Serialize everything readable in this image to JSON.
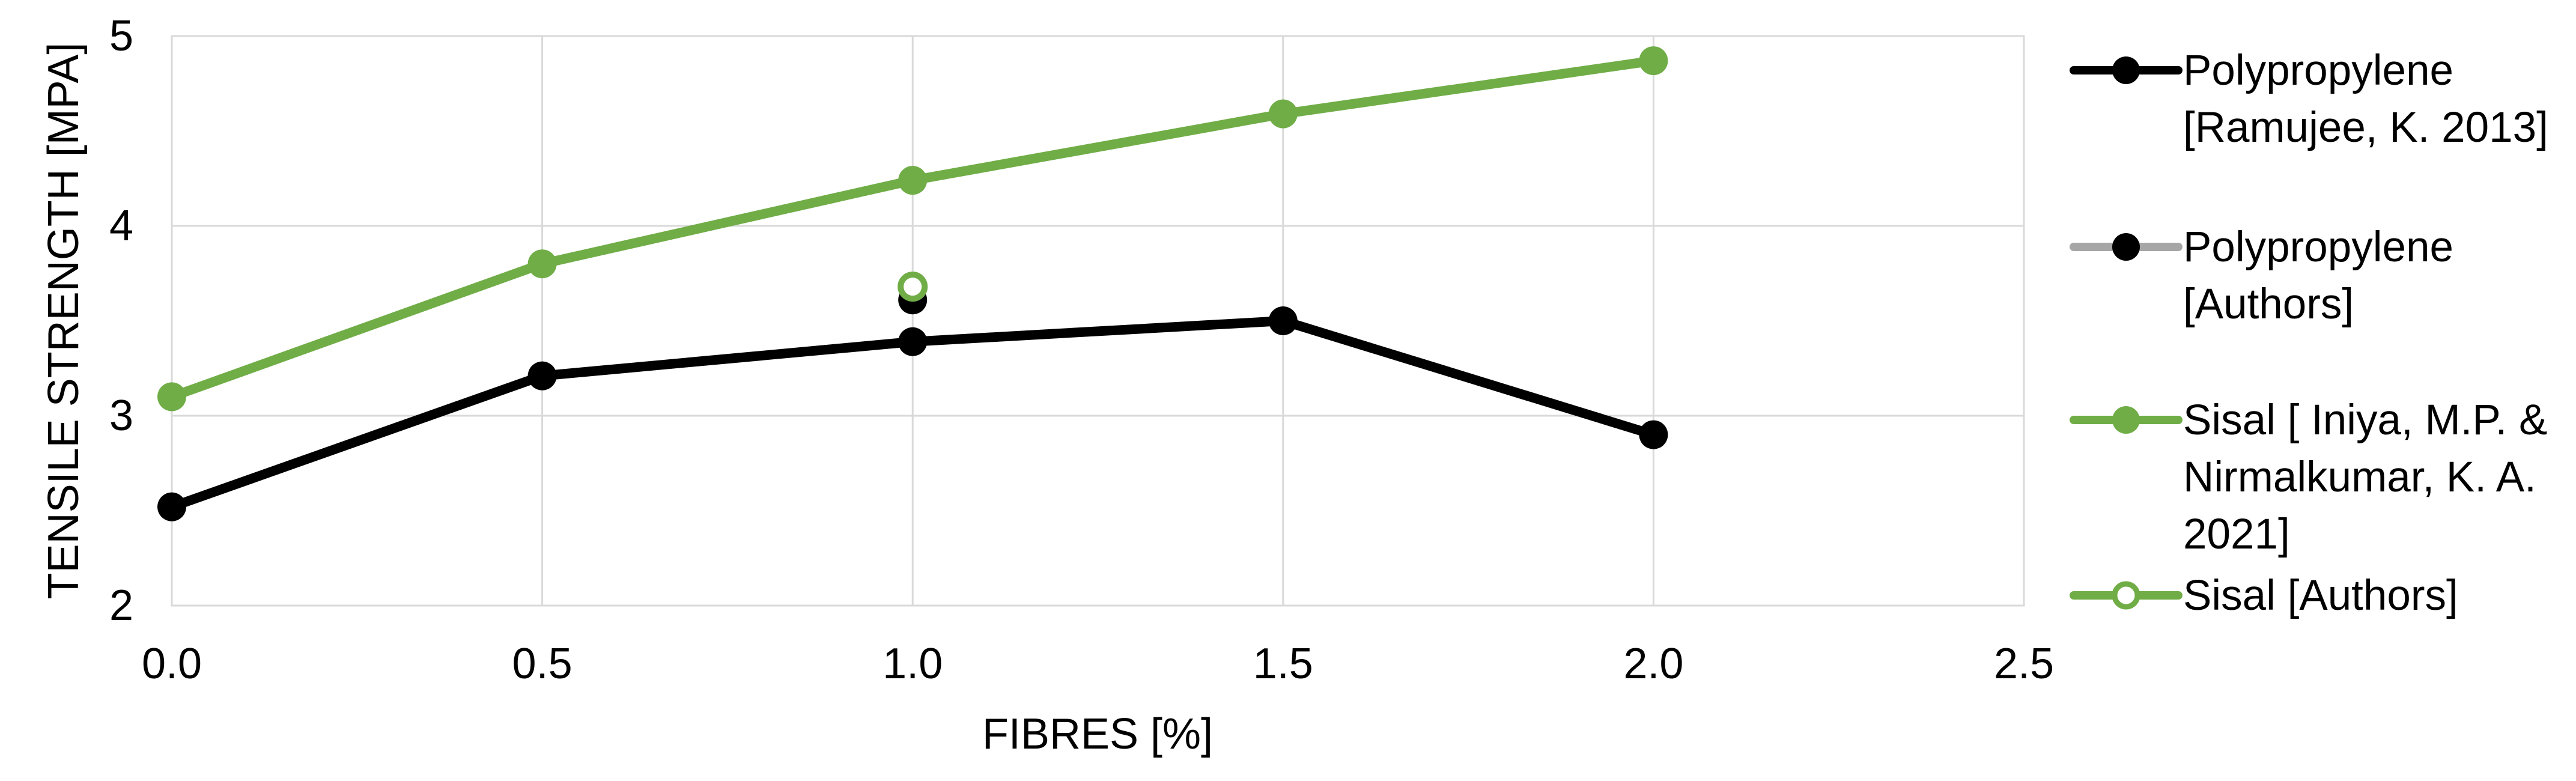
{
  "chart_data": {
    "type": "line",
    "title": "",
    "xlabel": "FIBRES [%]",
    "ylabel": "TENSILE STRENGTH [MPA]",
    "xlim": [
      0,
      2.5
    ],
    "ylim": [
      2,
      5
    ],
    "grid": true,
    "legend_position": "right",
    "x_ticks": [
      {
        "v": 0.0,
        "label": "0.0"
      },
      {
        "v": 0.5,
        "label": "0.5"
      },
      {
        "v": 1.0,
        "label": "1.0"
      },
      {
        "v": 1.5,
        "label": "1.5"
      },
      {
        "v": 2.0,
        "label": "2.0"
      },
      {
        "v": 2.5,
        "label": "2.5"
      }
    ],
    "y_ticks": [
      {
        "v": 5,
        "label": "5"
      },
      {
        "v": 4,
        "label": "4"
      },
      {
        "v": 3,
        "label": "3"
      },
      {
        "v": 2,
        "label": "2"
      }
    ],
    "colors": {
      "grid": "#D9D9D9",
      "black_series": "#000000",
      "green_series": "#70AD47",
      "gray_legend_line": "#A6A6A6",
      "marker_open_fill": "#FFFFFF"
    },
    "series": [
      {
        "name": "Polypropylene [Ramujee, K. 2013]",
        "color": "#000000",
        "marker": "filled",
        "line": true,
        "x": [
          0.0,
          0.5,
          1.0,
          1.5,
          2.0
        ],
        "y": [
          2.52,
          3.21,
          3.39,
          3.5,
          2.9
        ]
      },
      {
        "name": "Sisal [ Iniya, M.P. & Nirmalkumar, K. A. 2021]",
        "color": "#70AD47",
        "marker": "filled",
        "line": true,
        "x": [
          0.0,
          0.5,
          1.0,
          1.5,
          2.0
        ],
        "y": [
          3.1,
          3.8,
          4.24,
          4.59,
          4.87
        ]
      },
      {
        "name": "Polypropylene [Authors]",
        "color": "#000000",
        "marker": "filled",
        "line": false,
        "x": [
          1.0
        ],
        "y": [
          3.61
        ]
      },
      {
        "name": "Sisal [Authors]",
        "color": "#70AD47",
        "marker": "open",
        "line": false,
        "x": [
          1.0
        ],
        "y": [
          3.68
        ]
      }
    ]
  },
  "legend": {
    "entries": [
      {
        "line_color": "#000000",
        "marker_fill": "#000000",
        "marker_stroke": "#000000",
        "lines": [
          "Polypropylene",
          "[Ramujee, K. 2013]"
        ]
      },
      {
        "line_color": "#A6A6A6",
        "marker_fill": "#000000",
        "marker_stroke": "#000000",
        "lines": [
          "Polypropylene",
          "[Authors]"
        ]
      },
      {
        "line_color": "#70AD47",
        "marker_fill": "#70AD47",
        "marker_stroke": "#70AD47",
        "lines": [
          "Sisal [ Iniya, M.P. &",
          "Nirmalkumar, K. A.",
          "2021]"
        ]
      },
      {
        "line_color": "#70AD47",
        "marker_fill": "#FFFFFF",
        "marker_stroke": "#70AD47",
        "lines": [
          "Sisal [Authors]"
        ]
      }
    ]
  }
}
